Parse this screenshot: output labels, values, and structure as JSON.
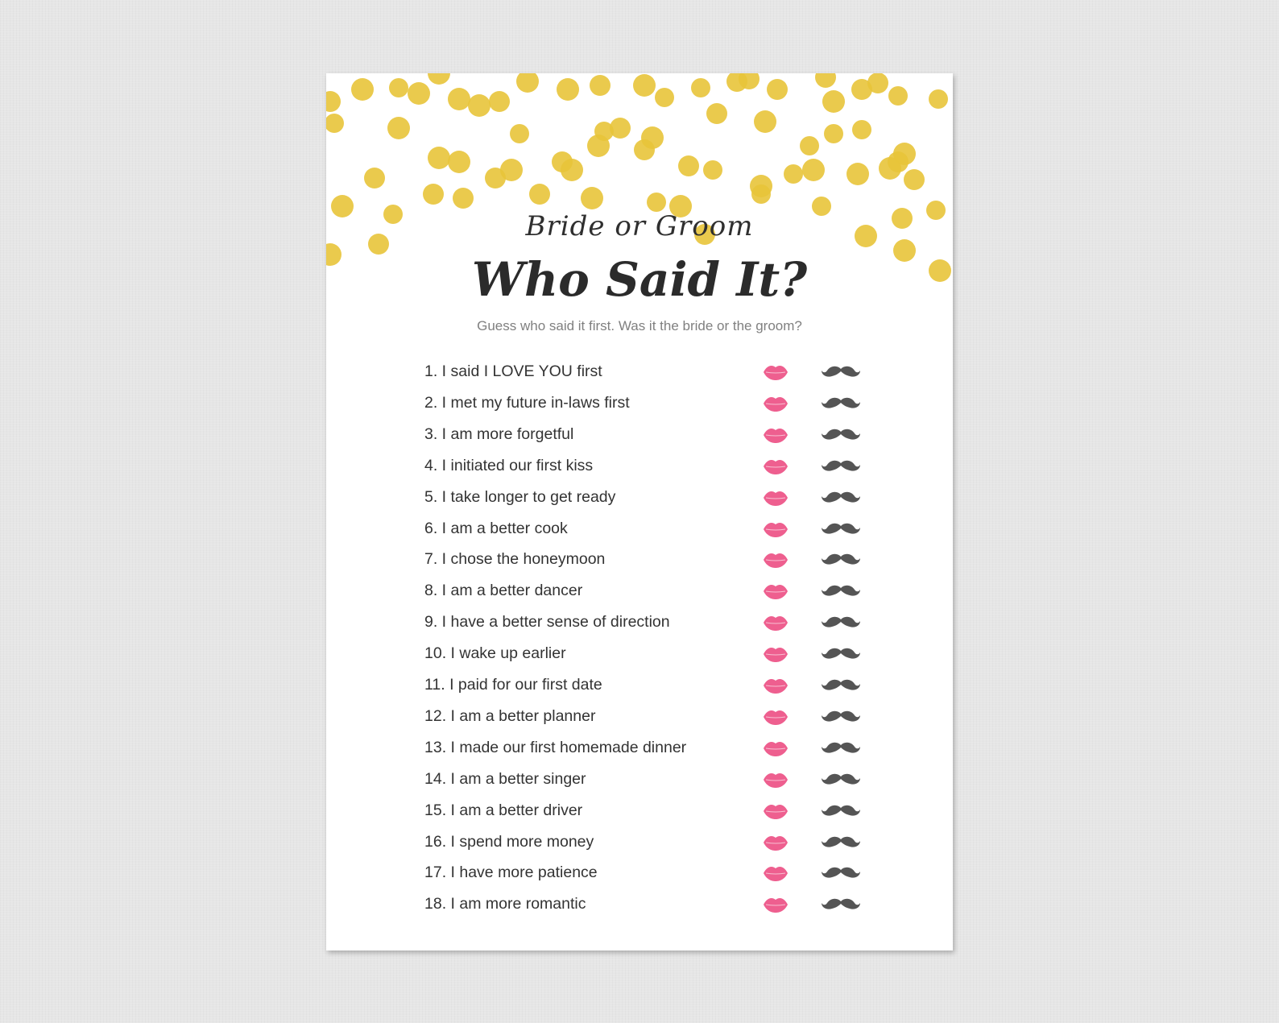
{
  "header": {
    "subtitle": "Bride or Groom",
    "title": "Who Said It?",
    "instructions": "Guess who said it first. Was it the bride or the groom?"
  },
  "colors": {
    "gold": "#e8c43a",
    "lips": "#ee5f8f",
    "mustache": "#555555",
    "text": "#333333"
  },
  "icons": {
    "bride": "lips-icon",
    "groom": "mustache-icon"
  },
  "items": [
    "1. I said I LOVE YOU first",
    "2. I met my future in-laws first",
    "3. I am more forgetful",
    "4. I initiated our first kiss",
    "5. I take longer to get ready",
    "6. I am a better cook",
    "7. I chose the honeymoon",
    "8. I am a better dancer",
    "9. I have a better sense of direction",
    "10. I wake up earlier",
    "11. I paid for our first date",
    "12. I am a better planner",
    "13. I made our first homemade dinner",
    "14. I am a better singer",
    "15. I am a better driver",
    "16. I spend more money",
    "17. I have more patience",
    "18. I am more romantic"
  ]
}
